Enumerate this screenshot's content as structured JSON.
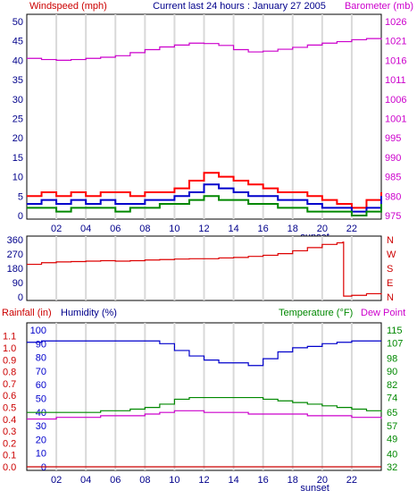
{
  "chart_data": [
    {
      "type": "line",
      "title": "Current last 24 hours : January 27 2005",
      "left_label": "Windspeed (mph)",
      "right_label": "Barometer (mb)",
      "left_ticks": [
        "0",
        "5",
        "10",
        "15",
        "20",
        "25",
        "30",
        "35",
        "40",
        "45",
        "50"
      ],
      "right_ticks": [
        "975",
        "980",
        "985",
        "990",
        "995",
        "1001",
        "1006",
        "1011",
        "1016",
        "1021",
        "1026"
      ],
      "x_ticks": [
        "02",
        "04",
        "06",
        "08",
        "10",
        "12",
        "14",
        "16",
        "18",
        "20",
        "22"
      ],
      "x_note": "sunset",
      "ylim_left": [
        0,
        50
      ],
      "ylim_right": [
        975,
        1026
      ],
      "xlim": [
        0,
        24
      ],
      "grid": true,
      "series": [
        {
          "axis": "right",
          "color": "#cc00cc",
          "x": [
            0,
            1,
            2,
            3,
            4,
            5,
            6,
            7,
            8,
            9,
            10,
            11,
            12,
            13,
            14,
            15,
            16,
            17,
            18,
            19,
            20,
            21,
            22,
            23,
            24
          ],
          "y": [
            1016.3,
            1016.0,
            1015.8,
            1016.0,
            1016.3,
            1016.6,
            1017.0,
            1017.8,
            1018.6,
            1019.3,
            1019.8,
            1020.3,
            1020.2,
            1019.7,
            1018.6,
            1018.0,
            1018.2,
            1018.7,
            1019.2,
            1019.8,
            1020.3,
            1020.7,
            1021.2,
            1021.5,
            1021.2
          ]
        },
        {
          "axis": "left",
          "color": "#ff0000",
          "x": [
            0,
            1,
            2,
            3,
            4,
            5,
            6,
            7,
            8,
            9,
            10,
            11,
            12,
            13,
            14,
            15,
            16,
            17,
            18,
            19,
            20,
            21,
            22,
            23,
            24
          ],
          "y": [
            5,
            6,
            5,
            6,
            5,
            6,
            6,
            5,
            6,
            6,
            7,
            9,
            11,
            10,
            9,
            8,
            7,
            6,
            6,
            5,
            4,
            3,
            2,
            4,
            6
          ]
        },
        {
          "axis": "left",
          "color": "#0000cc",
          "x": [
            0,
            1,
            2,
            3,
            4,
            5,
            6,
            7,
            8,
            9,
            10,
            11,
            12,
            13,
            14,
            15,
            16,
            17,
            18,
            19,
            20,
            21,
            22,
            23,
            24
          ],
          "y": [
            3,
            4,
            3,
            4,
            3,
            4,
            3,
            3,
            4,
            4,
            5,
            6,
            8,
            7,
            6,
            5,
            5,
            4,
            4,
            3,
            2,
            2,
            1,
            2,
            5
          ]
        },
        {
          "axis": "left",
          "color": "#008800",
          "x": [
            0,
            1,
            2,
            3,
            4,
            5,
            6,
            7,
            8,
            9,
            10,
            11,
            12,
            13,
            14,
            15,
            16,
            17,
            18,
            19,
            20,
            21,
            22,
            23,
            24
          ],
          "y": [
            2,
            2,
            1,
            2,
            2,
            2,
            1,
            2,
            2,
            3,
            3,
            4,
            5,
            4,
            4,
            3,
            3,
            2,
            2,
            1,
            1,
            1,
            0,
            1,
            3
          ]
        }
      ]
    },
    {
      "type": "line",
      "left_ticks": [
        "0",
        "90",
        "180",
        "270",
        "360"
      ],
      "right_ticks": [
        "N",
        "E",
        "S",
        "W",
        "N"
      ],
      "ylim_left": [
        0,
        360
      ],
      "xlim": [
        0,
        24
      ],
      "grid": true,
      "series": [
        {
          "axis": "left",
          "color": "#dd0000",
          "x": [
            0,
            1,
            2,
            3,
            4,
            5,
            6,
            7,
            8,
            9,
            10,
            11,
            12,
            13,
            14,
            15,
            16,
            17,
            18,
            19,
            20,
            21,
            21.4,
            21.45,
            22,
            23,
            24
          ],
          "y": [
            205,
            215,
            220,
            222,
            225,
            228,
            225,
            228,
            232,
            235,
            238,
            240,
            240,
            245,
            248,
            255,
            262,
            272,
            290,
            310,
            330,
            340,
            345,
            5,
            10,
            20,
            15
          ]
        }
      ]
    },
    {
      "type": "line",
      "left_label_1": "Rainfall (in)",
      "left_label_2": "Humidity (%)",
      "right_label_1": "Temperature (°F)",
      "right_label_2": "Dew Point",
      "rain_ticks": [
        "0.0",
        "0.1",
        "0.2",
        "0.3",
        "0.4",
        "0.5",
        "0.6",
        "0.7",
        "0.8",
        "0.9",
        "1.0",
        "1.1"
      ],
      "humidity_ticks": [
        "0",
        "10",
        "20",
        "30",
        "40",
        "50",
        "60",
        "70",
        "80",
        "90",
        "100"
      ],
      "temp_ticks": [
        "32",
        "40",
        "49",
        "57",
        "65",
        "74",
        "82",
        "90",
        "98",
        "107",
        "115"
      ],
      "x_ticks": [
        "02",
        "04",
        "06",
        "08",
        "10",
        "12",
        "14",
        "16",
        "18",
        "20",
        "22"
      ],
      "x_note": "sunset",
      "ylim_rain": [
        0,
        1.15
      ],
      "ylim_humidity": [
        0,
        100
      ],
      "ylim_temp": [
        32,
        115
      ],
      "xlim": [
        0,
        24
      ],
      "grid": true,
      "series": [
        {
          "axis": "humidity",
          "color": "#0000cc",
          "x": [
            0,
            1,
            2,
            3,
            4,
            5,
            6,
            7,
            8,
            9,
            10,
            11,
            12,
            13,
            14,
            15,
            16,
            17,
            18,
            19,
            20,
            21,
            22,
            23,
            24
          ],
          "y": [
            91,
            92,
            92,
            92,
            92,
            92,
            92,
            92,
            92,
            90,
            85,
            81,
            78,
            76,
            76,
            74,
            79,
            84,
            87,
            88,
            90,
            91,
            92,
            92,
            92
          ]
        },
        {
          "axis": "temp",
          "color": "#008800",
          "x": [
            0,
            1,
            2,
            3,
            4,
            5,
            6,
            7,
            8,
            9,
            10,
            11,
            12,
            13,
            14,
            15,
            16,
            17,
            18,
            19,
            20,
            21,
            22,
            23,
            24
          ],
          "y": [
            65,
            65,
            65,
            65,
            65,
            66,
            66,
            67,
            68,
            70,
            73,
            74,
            74,
            74,
            74,
            74,
            73,
            72,
            71,
            70,
            69,
            68,
            67,
            66,
            65
          ]
        },
        {
          "axis": "temp",
          "color": "#cc00cc",
          "x": [
            0,
            1,
            2,
            3,
            4,
            5,
            6,
            7,
            8,
            9,
            10,
            11,
            12,
            13,
            14,
            15,
            16,
            17,
            18,
            19,
            20,
            21,
            22,
            23,
            24
          ],
          "y": [
            61,
            61,
            62,
            62,
            62,
            63,
            63,
            63,
            64,
            65,
            66,
            66,
            65,
            65,
            65,
            64,
            64,
            64,
            64,
            63,
            63,
            63,
            62,
            62,
            61
          ]
        },
        {
          "axis": "rain",
          "color": "#cc0000",
          "x": [
            0,
            24
          ],
          "y": [
            0,
            0
          ]
        }
      ]
    }
  ]
}
